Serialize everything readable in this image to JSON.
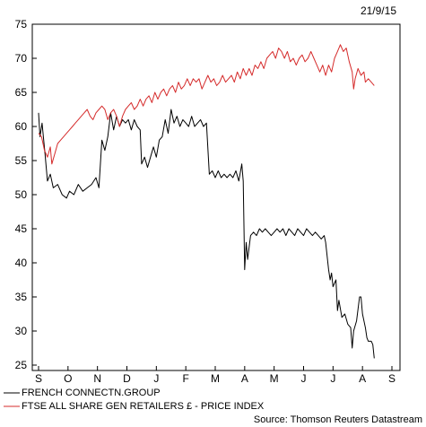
{
  "chart_data": {
    "type": "line",
    "date": "21/9/15",
    "source": "Source: Thomson Reuters Datastream",
    "ylim": [
      25,
      75
    ],
    "yticks": [
      25,
      30,
      35,
      40,
      45,
      50,
      55,
      60,
      65,
      70,
      75
    ],
    "xlim": [
      0,
      12
    ],
    "months": [
      "S",
      "O",
      "N",
      "D",
      "J",
      "F",
      "M",
      "A",
      "M",
      "J",
      "J",
      "A",
      "S"
    ],
    "grid": false,
    "legend_position": "bottom-left",
    "series": [
      {
        "name": "FRENCH CONNECTN.GROUP",
        "color": "#000000",
        "points": [
          [
            0.0,
            62.0
          ],
          [
            0.05,
            58.5
          ],
          [
            0.12,
            60.5
          ],
          [
            0.22,
            56.0
          ],
          [
            0.3,
            52.0
          ],
          [
            0.4,
            53.0
          ],
          [
            0.5,
            51.0
          ],
          [
            0.65,
            51.5
          ],
          [
            0.8,
            50.0
          ],
          [
            0.95,
            49.5
          ],
          [
            1.05,
            50.5
          ],
          [
            1.2,
            50.0
          ],
          [
            1.35,
            51.5
          ],
          [
            1.5,
            50.5
          ],
          [
            1.65,
            51.0
          ],
          [
            1.8,
            51.5
          ],
          [
            1.95,
            52.5
          ],
          [
            2.05,
            51.0
          ],
          [
            2.15,
            58.0
          ],
          [
            2.25,
            56.5
          ],
          [
            2.35,
            58.5
          ],
          [
            2.45,
            62.0
          ],
          [
            2.55,
            59.5
          ],
          [
            2.65,
            61.5
          ],
          [
            2.75,
            60.0
          ],
          [
            2.85,
            61.0
          ],
          [
            2.95,
            60.5
          ],
          [
            3.05,
            61.0
          ],
          [
            3.15,
            59.5
          ],
          [
            3.25,
            61.0
          ],
          [
            3.35,
            60.0
          ],
          [
            3.45,
            59.5
          ],
          [
            3.5,
            54.5
          ],
          [
            3.6,
            55.5
          ],
          [
            3.7,
            54.0
          ],
          [
            3.8,
            55.5
          ],
          [
            3.9,
            57.0
          ],
          [
            4.0,
            55.5
          ],
          [
            4.1,
            58.0
          ],
          [
            4.2,
            58.5
          ],
          [
            4.3,
            61.0
          ],
          [
            4.4,
            59.0
          ],
          [
            4.5,
            62.5
          ],
          [
            4.6,
            60.5
          ],
          [
            4.7,
            61.5
          ],
          [
            4.8,
            60.0
          ],
          [
            4.9,
            61.0
          ],
          [
            5.0,
            60.5
          ],
          [
            5.1,
            60.0
          ],
          [
            5.2,
            61.5
          ],
          [
            5.3,
            60.0
          ],
          [
            5.4,
            60.5
          ],
          [
            5.5,
            61.0
          ],
          [
            5.6,
            60.0
          ],
          [
            5.7,
            60.5
          ],
          [
            5.8,
            53.0
          ],
          [
            5.9,
            53.5
          ],
          [
            6.0,
            52.5
          ],
          [
            6.1,
            53.5
          ],
          [
            6.2,
            52.5
          ],
          [
            6.3,
            53.0
          ],
          [
            6.4,
            52.5
          ],
          [
            6.5,
            53.0
          ],
          [
            6.6,
            52.5
          ],
          [
            6.7,
            53.5
          ],
          [
            6.8,
            52.0
          ],
          [
            6.9,
            54.5
          ],
          [
            6.95,
            52.0
          ],
          [
            7.0,
            39.0
          ],
          [
            7.05,
            43.0
          ],
          [
            7.1,
            40.5
          ],
          [
            7.2,
            44.0
          ],
          [
            7.3,
            44.5
          ],
          [
            7.4,
            44.0
          ],
          [
            7.5,
            45.0
          ],
          [
            7.6,
            44.5
          ],
          [
            7.7,
            45.0
          ],
          [
            7.8,
            44.5
          ],
          [
            7.9,
            44.0
          ],
          [
            8.0,
            44.5
          ],
          [
            8.1,
            45.0
          ],
          [
            8.2,
            44.5
          ],
          [
            8.3,
            45.0
          ],
          [
            8.4,
            44.0
          ],
          [
            8.5,
            45.0
          ],
          [
            8.6,
            44.5
          ],
          [
            8.7,
            44.0
          ],
          [
            8.8,
            45.0
          ],
          [
            8.9,
            44.5
          ],
          [
            9.0,
            44.0
          ],
          [
            9.1,
            45.0
          ],
          [
            9.2,
            44.5
          ],
          [
            9.3,
            44.0
          ],
          [
            9.4,
            44.5
          ],
          [
            9.5,
            44.0
          ],
          [
            9.6,
            43.5
          ],
          [
            9.7,
            44.0
          ],
          [
            9.75,
            43.0
          ],
          [
            9.85,
            39.0
          ],
          [
            9.9,
            37.5
          ],
          [
            9.95,
            38.5
          ],
          [
            10.0,
            36.5
          ],
          [
            10.1,
            37.5
          ],
          [
            10.15,
            33.0
          ],
          [
            10.2,
            34.5
          ],
          [
            10.3,
            32.0
          ],
          [
            10.4,
            32.5
          ],
          [
            10.5,
            31.0
          ],
          [
            10.6,
            30.5
          ],
          [
            10.65,
            27.5
          ],
          [
            10.7,
            30.0
          ],
          [
            10.8,
            31.5
          ],
          [
            10.9,
            35.0
          ],
          [
            10.95,
            35.0
          ],
          [
            11.0,
            32.5
          ],
          [
            11.1,
            30.5
          ],
          [
            11.15,
            29.0
          ],
          [
            11.2,
            28.5
          ],
          [
            11.3,
            28.5
          ],
          [
            11.35,
            28.0
          ],
          [
            11.4,
            26.0
          ]
        ]
      },
      {
        "name": "FTSE ALL SHARE GEN RETAILERS £ - PRICE INDEX",
        "color": "#d52b2b",
        "points": [
          [
            0.0,
            59.0
          ],
          [
            0.1,
            58.5
          ],
          [
            0.2,
            56.5
          ],
          [
            0.3,
            55.5
          ],
          [
            0.4,
            57.0
          ],
          [
            0.45,
            54.5
          ],
          [
            0.55,
            56.0
          ],
          [
            0.65,
            57.5
          ],
          [
            0.75,
            58.0
          ],
          [
            0.85,
            58.5
          ],
          [
            0.95,
            59.0
          ],
          [
            1.05,
            59.5
          ],
          [
            1.15,
            60.0
          ],
          [
            1.25,
            60.5
          ],
          [
            1.35,
            61.0
          ],
          [
            1.45,
            61.5
          ],
          [
            1.55,
            62.0
          ],
          [
            1.65,
            62.5
          ],
          [
            1.75,
            61.5
          ],
          [
            1.85,
            61.0
          ],
          [
            1.95,
            62.0
          ],
          [
            2.05,
            62.5
          ],
          [
            2.15,
            63.0
          ],
          [
            2.25,
            62.5
          ],
          [
            2.35,
            61.0
          ],
          [
            2.45,
            62.0
          ],
          [
            2.55,
            62.5
          ],
          [
            2.65,
            61.5
          ],
          [
            2.75,
            60.0
          ],
          [
            2.85,
            61.5
          ],
          [
            2.95,
            62.5
          ],
          [
            3.05,
            63.0
          ],
          [
            3.15,
            63.5
          ],
          [
            3.25,
            62.5
          ],
          [
            3.35,
            63.0
          ],
          [
            3.45,
            64.0
          ],
          [
            3.55,
            63.0
          ],
          [
            3.65,
            64.0
          ],
          [
            3.75,
            64.5
          ],
          [
            3.85,
            63.5
          ],
          [
            3.95,
            65.0
          ],
          [
            4.05,
            64.0
          ],
          [
            4.15,
            65.0
          ],
          [
            4.25,
            65.5
          ],
          [
            4.35,
            64.5
          ],
          [
            4.45,
            65.5
          ],
          [
            4.55,
            66.0
          ],
          [
            4.65,
            65.0
          ],
          [
            4.75,
            66.5
          ],
          [
            4.85,
            65.5
          ],
          [
            4.95,
            66.0
          ],
          [
            5.05,
            67.0
          ],
          [
            5.15,
            66.0
          ],
          [
            5.25,
            67.0
          ],
          [
            5.35,
            66.5
          ],
          [
            5.45,
            67.0
          ],
          [
            5.55,
            65.5
          ],
          [
            5.65,
            66.5
          ],
          [
            5.75,
            67.5
          ],
          [
            5.85,
            66.5
          ],
          [
            5.95,
            67.0
          ],
          [
            6.05,
            66.0
          ],
          [
            6.15,
            66.5
          ],
          [
            6.25,
            67.5
          ],
          [
            6.35,
            66.5
          ],
          [
            6.45,
            67.0
          ],
          [
            6.55,
            67.5
          ],
          [
            6.65,
            66.5
          ],
          [
            6.75,
            68.0
          ],
          [
            6.85,
            67.0
          ],
          [
            6.95,
            68.5
          ],
          [
            7.05,
            67.5
          ],
          [
            7.15,
            68.5
          ],
          [
            7.25,
            67.5
          ],
          [
            7.35,
            69.0
          ],
          [
            7.45,
            68.5
          ],
          [
            7.55,
            69.5
          ],
          [
            7.65,
            68.5
          ],
          [
            7.75,
            70.0
          ],
          [
            7.85,
            70.5
          ],
          [
            7.95,
            71.0
          ],
          [
            8.05,
            70.0
          ],
          [
            8.15,
            71.5
          ],
          [
            8.25,
            71.0
          ],
          [
            8.35,
            70.0
          ],
          [
            8.45,
            71.0
          ],
          [
            8.55,
            69.5
          ],
          [
            8.65,
            70.0
          ],
          [
            8.75,
            69.0
          ],
          [
            8.85,
            70.0
          ],
          [
            8.95,
            70.5
          ],
          [
            9.05,
            69.5
          ],
          [
            9.15,
            70.0
          ],
          [
            9.25,
            71.0
          ],
          [
            9.35,
            70.0
          ],
          [
            9.45,
            69.0
          ],
          [
            9.55,
            68.0
          ],
          [
            9.65,
            69.0
          ],
          [
            9.75,
            67.5
          ],
          [
            9.85,
            69.0
          ],
          [
            9.95,
            68.0
          ],
          [
            10.05,
            70.0
          ],
          [
            10.15,
            71.0
          ],
          [
            10.25,
            72.0
          ],
          [
            10.35,
            71.0
          ],
          [
            10.45,
            71.5
          ],
          [
            10.55,
            69.5
          ],
          [
            10.65,
            68.0
          ],
          [
            10.7,
            65.5
          ],
          [
            10.75,
            67.0
          ],
          [
            10.85,
            68.5
          ],
          [
            10.95,
            67.5
          ],
          [
            11.05,
            68.0
          ],
          [
            11.1,
            66.5
          ],
          [
            11.2,
            67.0
          ],
          [
            11.3,
            66.5
          ],
          [
            11.4,
            66.0
          ]
        ]
      }
    ]
  }
}
